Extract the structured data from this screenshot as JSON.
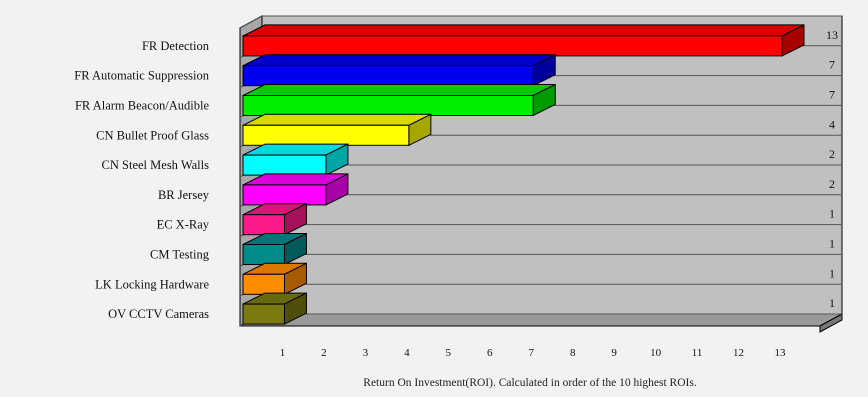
{
  "chart_data": {
    "type": "bar",
    "orientation": "horizontal",
    "style": "3d",
    "categories": [
      "FR Detection",
      "FR Automatic Suppression",
      "FR Alarm Beacon/Audible",
      "CN Bullet Proof Glass",
      "CN Steel Mesh Walls",
      "BR Jersey",
      "EC X-Ray",
      "CM Testing",
      "LK Locking Hardware",
      "OV CCTV Cameras"
    ],
    "values": [
      13,
      7,
      7,
      4,
      2,
      2,
      1,
      1,
      1,
      1
    ],
    "value_labels": [
      "13",
      "7",
      "7",
      "4",
      "2",
      "2",
      "1",
      "1",
      "1",
      "1"
    ],
    "colors": [
      "#ff0000",
      "#0000ee",
      "#00ee00",
      "#ffff00",
      "#00ffff",
      "#ff00ff",
      "#ff1a8c",
      "#008b8b",
      "#ff8c00",
      "#7a7a10"
    ],
    "xticks": [
      "1",
      "2",
      "3",
      "4",
      "5",
      "6",
      "7",
      "8",
      "9",
      "10",
      "11",
      "12",
      "13"
    ],
    "xlim": [
      0,
      13.5
    ],
    "xlabel": "Return On Investment(ROI).  Calculated in order of the 10 highest ROIs.",
    "title": "",
    "ylabel": "",
    "grid": true,
    "legend": "none",
    "background_color": "#c0c0c0"
  }
}
